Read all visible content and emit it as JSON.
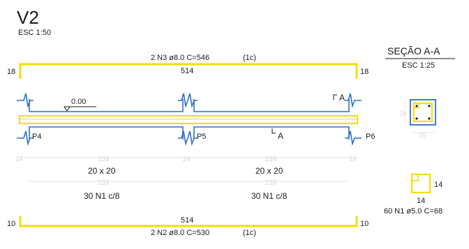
{
  "title": {
    "name": "V2",
    "scale": "ESC 1:50",
    "color": "#3aa03a"
  },
  "colors": {
    "top_bar": "#f2df00",
    "beam_outline": "#2f6fc8",
    "stirrup": "#f2df00",
    "text": "#1a1a1a",
    "faint": "#d4d4d4"
  },
  "top_reinforcement": {
    "label": "2 N3 ø8.0  C=546",
    "layers": "(1c)",
    "hook_left": "18",
    "hook_right": "18",
    "length": "514"
  },
  "bottom_reinforcement": {
    "label": "2 N2 ø8.0  C=530",
    "layers": "(1c)",
    "hook_left": "10",
    "hook_right": "10",
    "length": "514"
  },
  "level_mark": "0.00",
  "supports": [
    "P4",
    "P5",
    "P6"
  ],
  "section_cut": {
    "label": "A"
  },
  "spans": [
    {
      "dimension_faint": "239",
      "section": "20 x 20",
      "length_faint": "239",
      "stirrups": "30 N1 c/8"
    },
    {
      "dimension_faint": "239",
      "section": "20 x 20",
      "length_faint": "239",
      "stirrups": "30 N1 c/8"
    }
  ],
  "support_widths_faint": [
    "24",
    "24",
    "24",
    "24",
    "24"
  ],
  "section_view": {
    "title": "SEÇÃO A-A",
    "scale": "ESC 1:25",
    "height_faint": "20",
    "width_faint": "20"
  },
  "stirrup_detail": {
    "side": "14",
    "bottom": "14",
    "label": "60 N1 ø5.0  C=68"
  }
}
